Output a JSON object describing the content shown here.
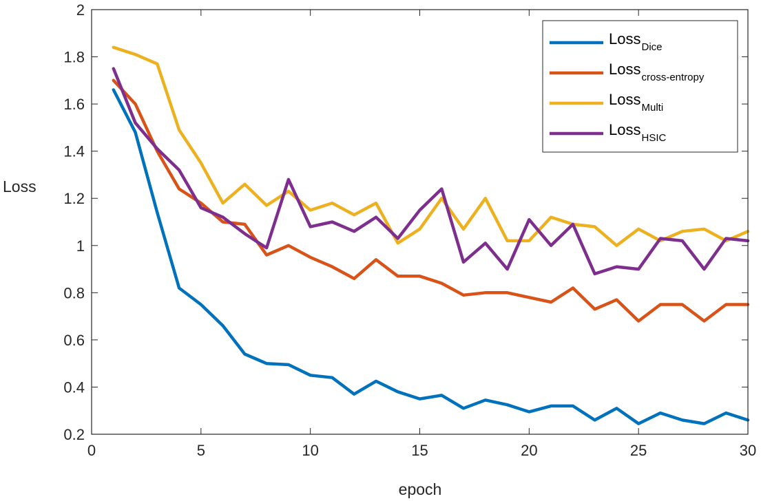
{
  "chart_data": {
    "type": "line",
    "title": "",
    "xlabel": "epoch",
    "ylabel": "Loss",
    "xlim": [
      0,
      30
    ],
    "ylim": [
      0.2,
      2
    ],
    "xticks": [
      0,
      5,
      10,
      15,
      20,
      25,
      30
    ],
    "xtick_labels": [
      "0",
      "5",
      "10",
      "15",
      "20",
      "25",
      "30"
    ],
    "yticks": [
      0.2,
      0.4,
      0.6,
      0.8,
      1.0,
      1.2,
      1.4,
      1.6,
      1.8,
      2.0
    ],
    "ytick_labels": [
      "0.2",
      "0.4",
      "0.6",
      "0.8",
      "1",
      "1.2",
      "1.4",
      "1.6",
      "1.8",
      "2"
    ],
    "grid": false,
    "legend_position": "top-right",
    "x": [
      1,
      2,
      3,
      4,
      5,
      6,
      7,
      8,
      9,
      10,
      11,
      12,
      13,
      14,
      15,
      16,
      17,
      18,
      19,
      20,
      21,
      22,
      23,
      24,
      25,
      26,
      27,
      28,
      29,
      30
    ],
    "series": [
      {
        "name": "LossDice",
        "label_main": "Loss",
        "label_sub": "Dice",
        "color": "#0072BD",
        "values": [
          1.66,
          1.48,
          1.14,
          0.82,
          0.75,
          0.66,
          0.54,
          0.5,
          0.495,
          0.45,
          0.44,
          0.37,
          0.425,
          0.38,
          0.35,
          0.365,
          0.31,
          0.345,
          0.325,
          0.295,
          0.32,
          0.32,
          0.26,
          0.31,
          0.245,
          0.29,
          0.26,
          0.245,
          0.29,
          0.26
        ]
      },
      {
        "name": "Losscross-entropy",
        "label_main": "Loss",
        "label_sub": "cross-entropy",
        "color": "#D95319",
        "values": [
          1.7,
          1.6,
          1.4,
          1.24,
          1.18,
          1.1,
          1.09,
          0.96,
          1.0,
          0.95,
          0.91,
          0.86,
          0.94,
          0.87,
          0.87,
          0.84,
          0.79,
          0.8,
          0.8,
          0.78,
          0.76,
          0.82,
          0.73,
          0.77,
          0.68,
          0.75,
          0.75,
          0.68,
          0.75,
          0.75
        ]
      },
      {
        "name": "LossMulti",
        "label_main": "Loss",
        "label_sub": "Multi",
        "color": "#EDB120",
        "values": [
          1.84,
          1.81,
          1.77,
          1.49,
          1.35,
          1.18,
          1.26,
          1.17,
          1.23,
          1.15,
          1.18,
          1.13,
          1.18,
          1.01,
          1.07,
          1.2,
          1.07,
          1.2,
          1.02,
          1.02,
          1.12,
          1.09,
          1.08,
          1.0,
          1.07,
          1.02,
          1.06,
          1.07,
          1.02,
          1.06
        ]
      },
      {
        "name": "LossHSIC",
        "label_main": "Loss",
        "label_sub": "HSIC",
        "color": "#7E2F8E",
        "values": [
          1.75,
          1.52,
          1.41,
          1.32,
          1.16,
          1.12,
          1.05,
          0.99,
          1.28,
          1.08,
          1.1,
          1.06,
          1.12,
          1.03,
          1.15,
          1.24,
          0.93,
          1.01,
          0.9,
          1.11,
          1.0,
          1.09,
          0.88,
          0.91,
          0.9,
          1.03,
          1.02,
          0.9,
          1.03,
          1.02
        ]
      }
    ]
  }
}
